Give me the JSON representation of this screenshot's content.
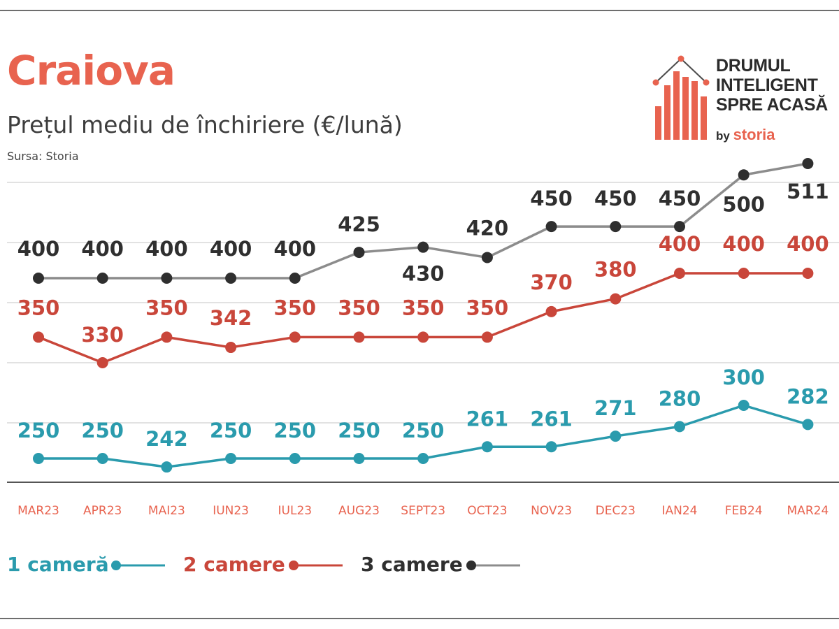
{
  "title": "Craiova",
  "subtitle": "Prețul mediu de închiriere (€/lună)",
  "source": "Sursa: Storia",
  "logo": {
    "lines": [
      "DRUMUL",
      "INTELIGENT",
      "SPRE ACASĂ"
    ],
    "by": "by",
    "brand": "storia"
  },
  "colors": {
    "title": "#e8634f",
    "one_room": "#2a9bad",
    "two_rooms": "#c9463a",
    "three_rooms": "#8c8c8c",
    "three_rooms_marker": "#2f2f2f",
    "axis_label": "#e8634f"
  },
  "chart_data": {
    "type": "line",
    "title": "Craiova",
    "subtitle": "Prețul mediu de închiriere (€/lună)",
    "xlabel": "",
    "ylabel": "",
    "categories": [
      "MAR23",
      "APR23",
      "MAI23",
      "IUN23",
      "IUL23",
      "AUG23",
      "SEPT23",
      "OCT23",
      "NOV23",
      "DEC23",
      "IAN24",
      "FEB24",
      "MAR24"
    ],
    "series": [
      {
        "name": "1 cameră",
        "values": [
          250,
          250,
          242,
          250,
          250,
          250,
          250,
          261,
          261,
          271,
          280,
          300,
          282
        ]
      },
      {
        "name": "2 camere",
        "values": [
          350,
          330,
          350,
          342,
          350,
          350,
          350,
          350,
          370,
          380,
          400,
          400,
          400
        ]
      },
      {
        "name": "3 camere",
        "values": [
          400,
          400,
          400,
          400,
          400,
          425,
          430,
          420,
          450,
          450,
          450,
          500,
          511
        ]
      }
    ],
    "legend_position": "bottom-left",
    "grid": true
  }
}
